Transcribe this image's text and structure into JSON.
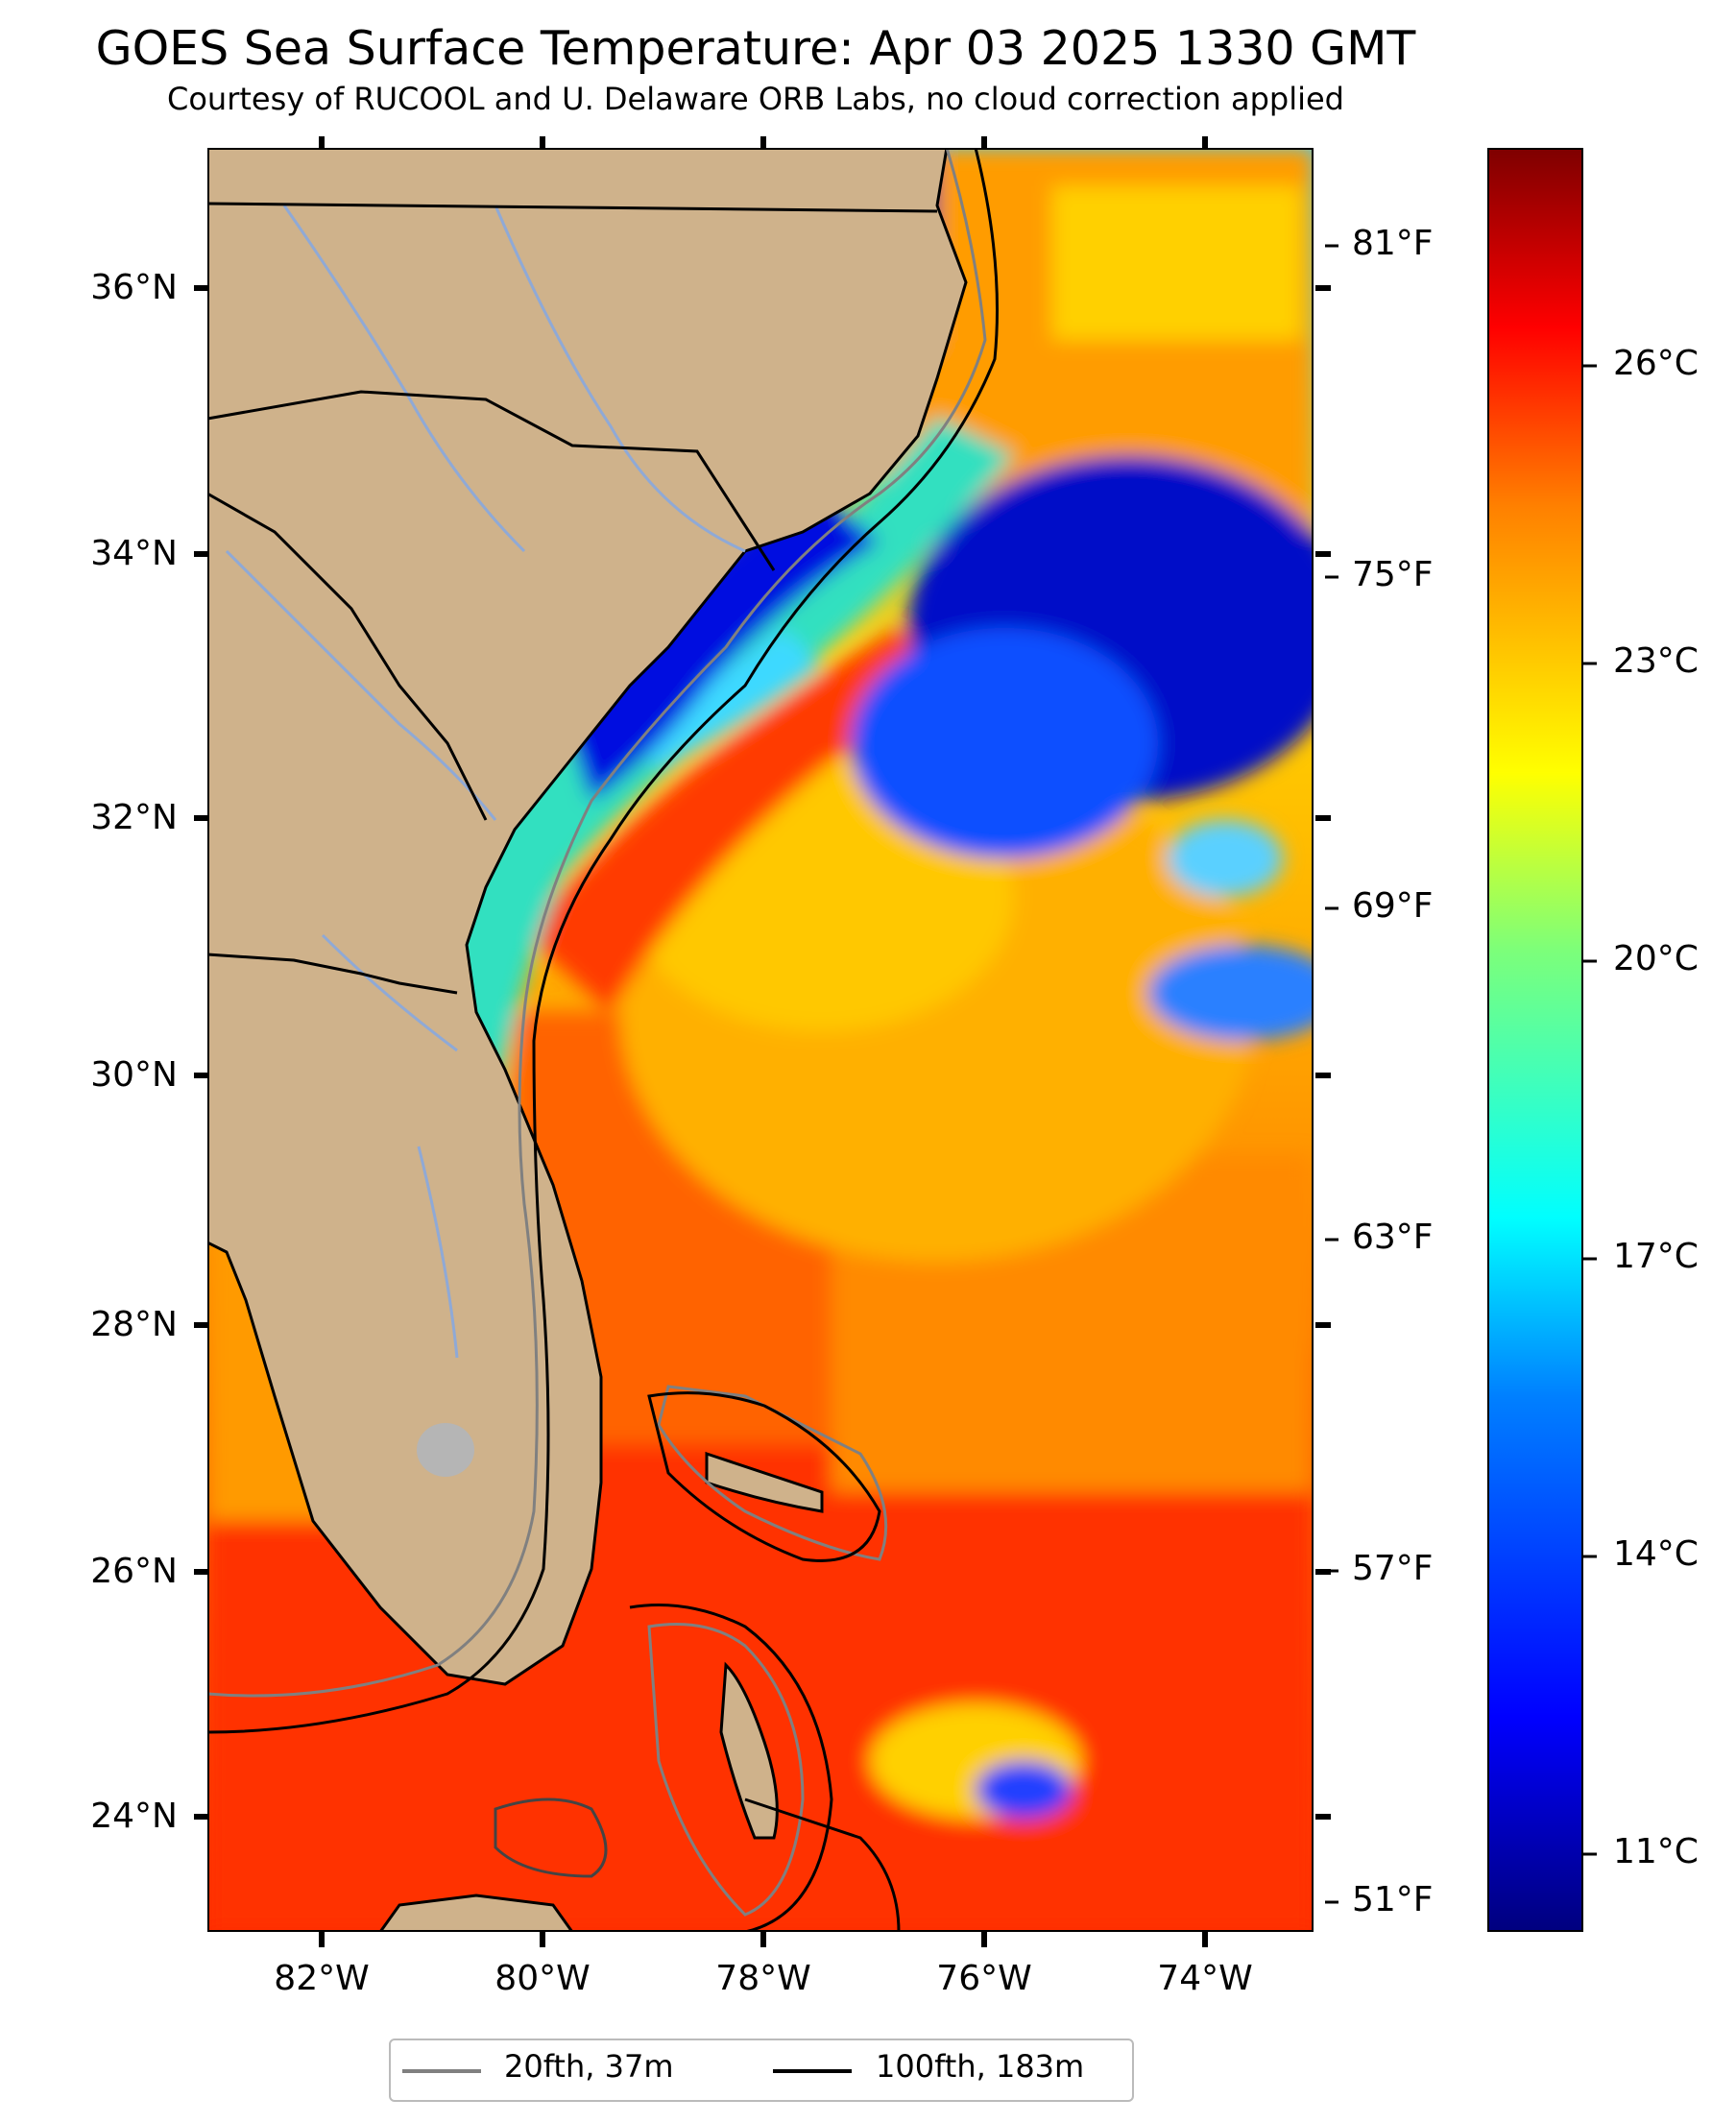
{
  "title": "GOES Sea Surface Temperature: Apr 03 2025 1330 GMT",
  "subtitle": "Courtesy of RUCOOL and U. Delaware ORB Labs, no cloud correction applied",
  "map": {
    "lat_ticks": [
      "36°N",
      "34°N",
      "32°N",
      "30°N",
      "28°N",
      "26°N",
      "24°N"
    ],
    "lon_ticks": [
      "82°W",
      "80°W",
      "78°W",
      "76°W",
      "74°W"
    ],
    "lon_range": [
      -83,
      -73
    ],
    "lat_range": [
      23.1,
      37
    ]
  },
  "fahrenheit_ticks": [
    "81°F",
    "75°F",
    "69°F",
    "63°F",
    "57°F",
    "51°F"
  ],
  "colorbar": {
    "ticks": [
      "26°C",
      "23°C",
      "20°C",
      "17°C",
      "14°C",
      "11°C"
    ],
    "colormap": "jet",
    "colors": [
      "#00007f",
      "#0000ff",
      "#0080ff",
      "#00ffff",
      "#7cff7a",
      "#ffff00",
      "#ff8000",
      "#ff0000",
      "#7f0000"
    ]
  },
  "legend": {
    "items": [
      {
        "label": "20fth, 37m",
        "color": "#808080"
      },
      {
        "label": "100fth, 183m",
        "color": "#000000"
      }
    ]
  },
  "colors": {
    "land": "#cfb28b",
    "river": "#8fa9d6",
    "warm_sea": "#ff3a00",
    "cold_sea": "#0000a8"
  }
}
